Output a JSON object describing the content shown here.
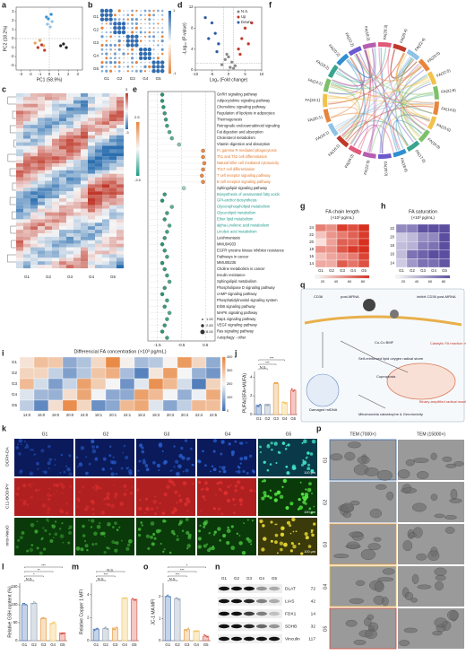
{
  "groups": [
    "G1",
    "G2",
    "G3",
    "G4",
    "G5"
  ],
  "group_colors": [
    "#3b6db3",
    "#8a9bb0",
    "#e89b3c",
    "#f2c14e",
    "#d94a3c"
  ],
  "panels": {
    "a": {
      "label": "a",
      "xlabel": "PC1 (58.9%)",
      "ylabel": "PC2 (18.2%)",
      "xlim": [
        -3.5,
        3.5
      ],
      "xticks": [
        -3,
        -2,
        -1,
        0,
        1,
        2,
        3
      ],
      "ylim": [
        -3.5,
        3.5
      ],
      "yticks": [
        -3,
        -2,
        -1,
        0,
        1,
        2,
        3
      ],
      "series": [
        {
          "color": "#2f8fd0",
          "x": [
            -0.3,
            0.2,
            -0.1
          ],
          "y": [
            2.4,
            2.7,
            2.2
          ]
        },
        {
          "color": "#8fc3e6",
          "x": [
            -0.2,
            0.3,
            0.1
          ],
          "y": [
            1.6,
            1.9,
            1.3
          ]
        },
        {
          "color": "#e8a15a",
          "x": [
            -1.5,
            -1.0,
            -0.6
          ],
          "y": [
            -0.5,
            -0.2,
            -0.8
          ]
        },
        {
          "color": "#c0392b",
          "x": [
            -1.2,
            -0.8,
            -0.5
          ],
          "y": [
            -1.0,
            -0.7,
            -1.3
          ]
        },
        {
          "color": "#222222",
          "x": [
            1.2,
            1.5,
            1.8
          ],
          "y": [
            -0.8,
            -0.6,
            -1.0
          ]
        }
      ]
    },
    "b": {
      "label": "b",
      "scale": [
        "1",
        "-1"
      ]
    },
    "c": {
      "label": "c",
      "scale": [
        "3",
        "-3"
      ]
    },
    "d": {
      "label": "d",
      "xlabel": "Log₂ (Fold change)",
      "ylabel": "-Log₁₀ (P-value)",
      "xlim": [
        -10,
        10
      ],
      "xticks": [
        -10,
        -5,
        0,
        5,
        10
      ],
      "ylim": [
        0,
        12
      ],
      "yticks": [
        0,
        4,
        8,
        12
      ],
      "series": [
        {
          "name": "N.S.",
          "color": "#888888",
          "x": [
            -2,
            -1,
            0.5,
            1,
            2,
            -0.5,
            0,
            1.5
          ],
          "y": [
            1,
            2,
            0.5,
            1.5,
            0.8,
            3,
            2.5,
            0.3
          ]
        },
        {
          "name": "Up",
          "color": "#c0392b",
          "x": [
            3,
            4,
            5,
            6,
            3.5,
            7
          ],
          "y": [
            4,
            6,
            8,
            5,
            3,
            9
          ]
        },
        {
          "name": "Down",
          "color": "#2c5aa0",
          "x": [
            -3,
            -4,
            -5,
            -6,
            -3.5,
            -7
          ],
          "y": [
            5,
            7,
            9,
            6,
            3.5,
            10
          ]
        }
      ]
    },
    "e": {
      "label": "e",
      "xlim": [
        -1.9,
        0.9
      ],
      "xticks": [
        -1.5,
        -0.5,
        0.5
      ],
      "scale": [
        "2.5",
        "-3.5"
      ],
      "size_legend": [
        "1.00",
        "2.83",
        "8.00"
      ],
      "pathways": [
        "GnRH signaling pathway",
        "Adipocytokine signaling pathway",
        "Chemokine signaling pathway",
        "Regulation of lipolysis in adipocytes",
        "Thermogenesis",
        "Retrograde endocannabinoid signaling",
        "Fat digestion and absorption",
        "Cholesterol metabolism",
        "Vitamin digestion and absorption",
        "Fc gamma R-mediated phagocytosis",
        "Th1 and Th2 cell differentiation",
        "Natural killer cell mediated cytotoxicity",
        "Th17 cell differentiation",
        "T cell receptor signaling pathway",
        "B cell receptor signaling pathway",
        "Sphingolipid signaling pathway",
        "Biosynthesis of unsaturated fatty acids",
        "GPI-anchor biosynthesis",
        "Glycerophospholipid metabolism",
        "Glycerolipid metabolism",
        "Ether lipid metabolism",
        "alpha-Linolenic acid metabolism",
        "Linoleic acid metabolism",
        "Leishmaniasis",
        "MMU04933",
        "EGFR tyrosine kinase inhibitor resistance",
        "Pathways in cancer",
        "MMU05235",
        "Choline metabolism in cancer",
        "Insulin resistance",
        "Sphingolipid metabolism",
        "Phospholipase D signaling pathway",
        "cAMP signaling pathway",
        "Phosphatidylinositol signaling system",
        "ErbB signaling pathway",
        "MAPK signaling pathway",
        "Rap1 signaling pathway",
        "VEGF signaling pathway",
        "Ras signaling pathway",
        "Autophagy - other"
      ],
      "label_colors": [
        "#222",
        "#222",
        "#222",
        "#222",
        "#222",
        "#222",
        "#222",
        "#222",
        "#222",
        "#e0762b",
        "#e0762b",
        "#e0762b",
        "#e0762b",
        "#e0762b",
        "#e0762b",
        "#222",
        "#1f9a8a",
        "#1f9a8a",
        "#1f9a8a",
        "#1f9a8a",
        "#1f9a8a",
        "#1f9a8a",
        "#1f9a8a",
        "#222",
        "#222",
        "#222",
        "#222",
        "#222",
        "#222",
        "#222",
        "#222",
        "#222",
        "#222",
        "#222",
        "#222",
        "#222",
        "#222",
        "#222",
        "#222",
        "#222"
      ],
      "values": [
        -1.3,
        -1.3,
        -1.25,
        -1.2,
        -1.15,
        -1.1,
        -1.0,
        -0.9,
        -0.6,
        0.4,
        0.4,
        0.45,
        0.4,
        0.35,
        0.4,
        -0.4,
        -1.2,
        -1.3,
        -0.9,
        -1.1,
        -1.2,
        -1.0,
        -1.1,
        -1.2,
        -1.3,
        -1.2,
        -1.1,
        -1.3,
        -1.2,
        -1.1,
        -1.0,
        -1.2,
        -1.3,
        -1.1,
        -1.2,
        -1.0,
        -1.1,
        -1.2,
        -1.3,
        -1.1
      ]
    },
    "f": {
      "label": "f",
      "labels": [
        "FA(14:0)",
        "FA(15:0)",
        "FA(16:0)",
        "FA(17:0)",
        "FA(18:0)",
        "FA(20:0)",
        "FA(22:0)",
        "FA(24:0)",
        "FA(16:1)",
        "FA(18:1)",
        "FA(20:1)",
        "FA(22:1)",
        "FA(24:1)",
        "FA(18:2)",
        "FA(20:2)",
        "FA(22:2)",
        "FA(18:3)",
        "FA(20:3)",
        "FA(20:4)",
        "FA(22:4)",
        "FA(20:5)",
        "FA(22:5)",
        "FA(22:6)"
      ]
    },
    "g": {
      "label": "g",
      "title": "FA chain length",
      "unit": "(×10³ pg/mL)",
      "rows": [
        "24",
        "22",
        "20",
        "18",
        "16",
        "14"
      ],
      "colorbar": [
        20,
        40,
        60,
        80
      ]
    },
    "h": {
      "label": "h",
      "title": "FA saturation",
      "unit": "(×10³ pg/mL)",
      "rows": [
        "22",
        "20",
        "18",
        "16",
        "14"
      ],
      "colorbar": [
        20,
        40,
        60,
        80
      ]
    },
    "i": {
      "label": "i",
      "title": "Differencial FA concentration (×10³ pg/mL)",
      "cols": [
        "14:0",
        "16:0",
        "18:0",
        "20:0",
        "24:0",
        "18:1",
        "20:1",
        "24:1",
        "18:2",
        "18:3",
        "20:3",
        "20:4",
        "22:4",
        "22:5"
      ],
      "colorbar": [
        400,
        300,
        200,
        100,
        0
      ]
    },
    "j": {
      "label": "j",
      "ylabel": "PUFA/(SFA+MUFA)",
      "ylim": [
        0,
        4.6
      ],
      "yticks": [
        0,
        2,
        4
      ],
      "values": [
        1.0,
        1.1,
        3.3,
        1.3,
        2.6
      ],
      "sig": [
        "N.S.",
        "***",
        "***"
      ]
    },
    "k": {
      "label": "k",
      "stains": [
        "DCFH-DA",
        "C11-BODIPY",
        "mito-NeoO"
      ],
      "scale_bar": "100 μm"
    },
    "l": {
      "label": "l",
      "ylabel": "Relative GSH content (%)",
      "ylim": [
        0,
        160
      ],
      "yticks": [
        0,
        50,
        100,
        150
      ],
      "values": [
        100,
        104,
        62,
        48,
        22
      ],
      "sig": [
        "N.S.",
        "*",
        "**",
        "***"
      ]
    },
    "m": {
      "label": "m",
      "ylabel": "Relative Copper 1 MFI",
      "ylim": [
        0,
        5
      ],
      "yticks": [
        0,
        2,
        4
      ],
      "values": [
        1.0,
        1.05,
        1.1,
        3.7,
        3.6
      ],
      "sig": [
        "N.S.",
        "***",
        "N.S."
      ]
    },
    "o": {
      "label": "o",
      "ylabel": "JC-1 MA MFI",
      "ylim": [
        0,
        2.6
      ],
      "yticks": [
        0,
        1,
        2
      ],
      "values": [
        2.0,
        1.9,
        0.5,
        0.45,
        0.2
      ],
      "sig": [
        "N.S.",
        "***",
        "***",
        "*"
      ]
    },
    "n": {
      "label": "n",
      "proteins": [
        "DLAT",
        "LIAS",
        "FDX1",
        "SDHB",
        "Vinculin"
      ],
      "kda": [
        "72",
        "42",
        "14",
        "32",
        "117"
      ]
    },
    "p": {
      "label": "p",
      "columns": [
        "TEM (7000×)",
        "TEM (15000×)"
      ]
    },
    "q": {
      "label": "q",
      "texts": [
        "CD36",
        "post-MRNA",
        "inhibit CD36 post-MRNA",
        "Cu-Cu BMF",
        "Self-reinforced lipid oxygen radical storm",
        "Damaged mtDNA",
        "Cuproptosis",
        "Mitochondria catastrophe & Genotoxicity",
        "Catalytic FA reaction meeting",
        "Binary-amplified radical reaction & Binary-amplified mitochondria damage"
      ]
    }
  }
}
